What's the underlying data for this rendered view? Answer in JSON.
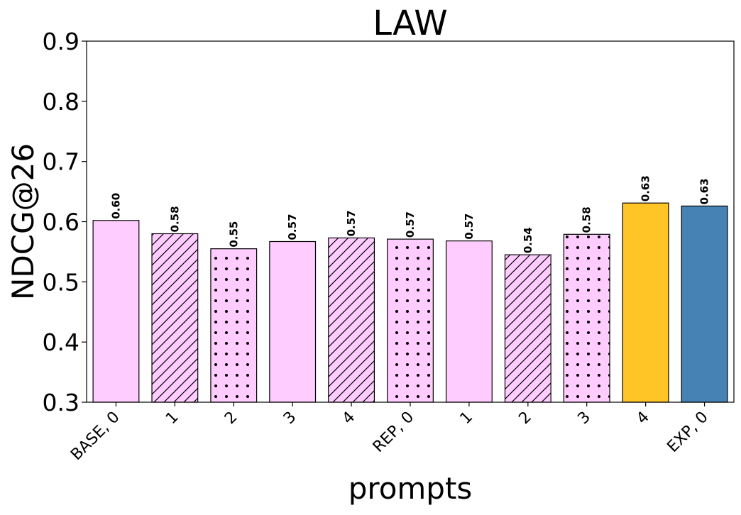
{
  "chart_data": {
    "type": "bar",
    "title": "LAW",
    "xlabel": "prompts",
    "ylabel": "NDCG@26",
    "ylim": [
      0.3,
      0.9
    ],
    "yticks": [
      "0.3",
      "0.4",
      "0.5",
      "0.6",
      "0.7",
      "0.8",
      "0.9"
    ],
    "categories": [
      "BASE, 0",
      "1",
      "2",
      "3",
      "4",
      "REP, 0",
      "1",
      "2",
      "3",
      "4",
      "EXP, 0"
    ],
    "values": [
      0.602,
      0.58,
      0.555,
      0.567,
      0.573,
      0.571,
      0.568,
      0.545,
      0.579,
      0.631,
      0.626
    ],
    "data_labels": [
      "0.60",
      "0.58",
      "0.55",
      "0.57",
      "0.57",
      "0.57",
      "0.57",
      "0.54",
      "0.58",
      "0.63",
      "0.63"
    ],
    "bar_colors": [
      "#ffccff",
      "#ffccff",
      "#ffccff",
      "#ffccff",
      "#ffccff",
      "#ffccff",
      "#ffccff",
      "#ffccff",
      "#ffccff",
      "#ffc425",
      "#4682b4"
    ],
    "bar_hatches": [
      "none",
      "diagonal",
      "dots",
      "none",
      "diagonal",
      "dots",
      "none",
      "diagonal",
      "dots",
      "none",
      "none"
    ],
    "grid": false,
    "legend": "none"
  }
}
